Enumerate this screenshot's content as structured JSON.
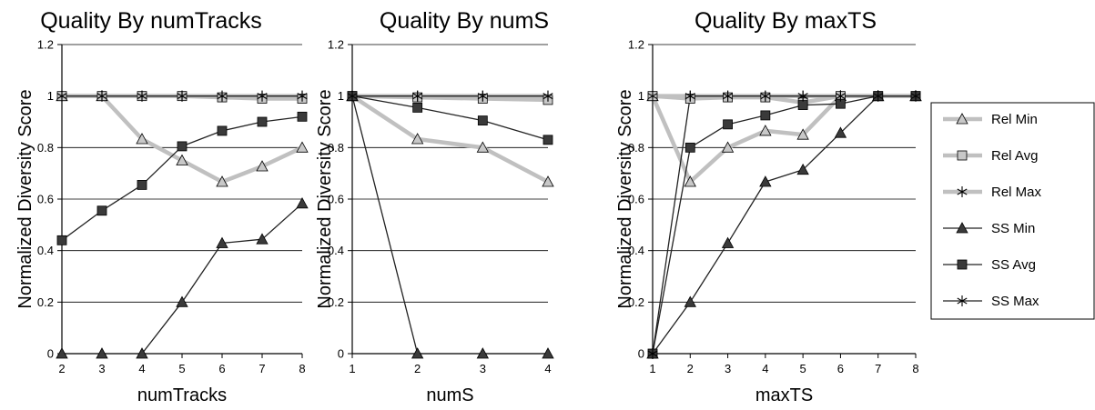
{
  "legend": [
    "Rel Min",
    "Rel Avg",
    "Rel Max",
    "SS Min",
    "SS Avg",
    "SS Max"
  ],
  "colors": {
    "rel": "#c0c0c0",
    "ss": "#222222",
    "rel_marker": "#c8c8c8",
    "ss_marker": "#3a3a3a",
    "grid": "#000000"
  },
  "chart_data": [
    {
      "type": "line",
      "title": "Quality By numTracks",
      "xlabel": "numTracks",
      "ylabel": "Normalized Diversity Score",
      "x": [
        2,
        3,
        4,
        5,
        6,
        7,
        8
      ],
      "ylim": [
        0,
        1.2
      ],
      "yticks": [
        "0",
        "0.2",
        "0.4",
        "0.6",
        "0.8",
        "1",
        "1.2"
      ],
      "grid": true,
      "series": [
        {
          "name": "Rel Min",
          "values": [
            1,
            1,
            0.833,
            0.75,
            0.667,
            0.727,
            0.8
          ]
        },
        {
          "name": "Rel Avg",
          "values": [
            1,
            1,
            1,
            1,
            0.995,
            0.99,
            0.99
          ]
        },
        {
          "name": "Rel Max",
          "values": [
            1,
            1,
            1,
            1,
            1,
            1,
            1
          ]
        },
        {
          "name": "SS Min",
          "values": [
            0,
            0,
            0,
            0.2,
            0.429,
            0.444,
            0.583
          ]
        },
        {
          "name": "SS Avg",
          "values": [
            0.44,
            0.555,
            0.655,
            0.805,
            0.865,
            0.9,
            0.92
          ]
        },
        {
          "name": "SS Max",
          "values": [
            1,
            1,
            1,
            1,
            1,
            1,
            1
          ]
        }
      ]
    },
    {
      "type": "line",
      "title": "Quality By numS",
      "xlabel": "numS",
      "ylabel": "Normalized Diversity Score",
      "x": [
        1,
        2,
        3,
        4
      ],
      "ylim": [
        0,
        1.2
      ],
      "yticks": [
        "0",
        "0.2",
        "0.4",
        "0.6",
        "0.8",
        "1",
        "1.2"
      ],
      "grid": true,
      "series": [
        {
          "name": "Rel Min",
          "values": [
            1,
            0.833,
            0.8,
            0.667
          ]
        },
        {
          "name": "Rel Avg",
          "values": [
            1,
            0.995,
            0.99,
            0.985
          ]
        },
        {
          "name": "Rel Max",
          "values": [
            1,
            1,
            1,
            1
          ]
        },
        {
          "name": "SS Min",
          "values": [
            1,
            0,
            0,
            0
          ]
        },
        {
          "name": "SS Avg",
          "values": [
            1,
            0.955,
            0.905,
            0.83
          ]
        },
        {
          "name": "SS Max",
          "values": [
            1,
            1,
            1,
            1
          ]
        }
      ]
    },
    {
      "type": "line",
      "title": "Quality By maxTS",
      "xlabel": "maxTS",
      "ylabel": "Normalized Diversity Score",
      "x": [
        1,
        2,
        3,
        4,
        5,
        6,
        7,
        8
      ],
      "ylim": [
        0,
        1.2
      ],
      "yticks": [
        "0",
        "0.2",
        "0.4",
        "0.6",
        "0.8",
        "1",
        "1.2"
      ],
      "grid": true,
      "series": [
        {
          "name": "Rel Min",
          "values": [
            1,
            0.667,
            0.8,
            0.865,
            0.85,
            1,
            1,
            1
          ]
        },
        {
          "name": "Rel Avg",
          "values": [
            1,
            0.99,
            0.995,
            0.995,
            0.975,
            1,
            1,
            1
          ]
        },
        {
          "name": "Rel Max",
          "values": [
            1,
            1,
            1,
            1,
            1,
            1,
            1,
            1
          ]
        },
        {
          "name": "SS Min",
          "values": [
            0,
            0.2,
            0.429,
            0.667,
            0.714,
            0.857,
            1,
            1
          ]
        },
        {
          "name": "SS Avg",
          "values": [
            0,
            0.8,
            0.89,
            0.925,
            0.965,
            0.97,
            1,
            1
          ]
        },
        {
          "name": "SS Max",
          "values": [
            0,
            1,
            1,
            1,
            1,
            1,
            1,
            1
          ]
        }
      ]
    }
  ]
}
